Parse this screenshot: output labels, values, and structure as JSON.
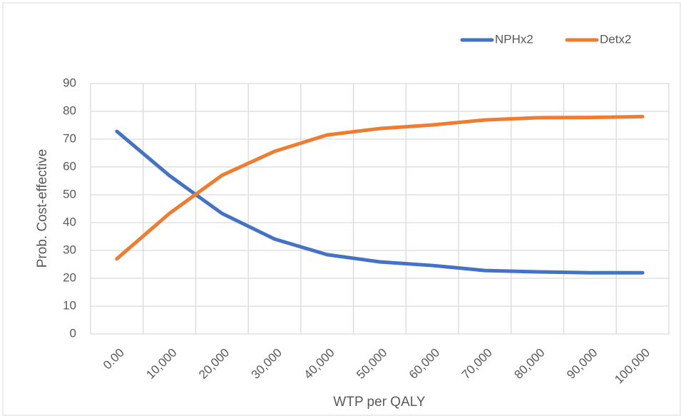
{
  "chart_data": {
    "type": "line",
    "xlabel": "WTP per QALY",
    "ylabel": "Prob. Cost-effective",
    "categories": [
      "0.00",
      "10,000",
      "20,000",
      "30,000",
      "40,000",
      "50,000",
      "60,000",
      "70,000",
      "80,000",
      "90,000",
      "100,000"
    ],
    "series": [
      {
        "name": "NPHx2",
        "color": "#4472c4",
        "values": [
          72.8,
          56.9,
          43.3,
          34.1,
          28.5,
          25.9,
          24.6,
          22.8,
          22.3,
          22,
          22
        ]
      },
      {
        "name": "Detx2",
        "color": "#ed7d31",
        "values": [
          27,
          43.3,
          57,
          65.6,
          71.5,
          73.8,
          75.1,
          76.9,
          77.7,
          77.8,
          78.1
        ]
      }
    ],
    "ylim": [
      0,
      90
    ],
    "yticks": [
      0,
      10,
      20,
      30,
      40,
      50,
      60,
      70,
      80,
      90
    ],
    "grid": true,
    "legend": "top-right"
  }
}
